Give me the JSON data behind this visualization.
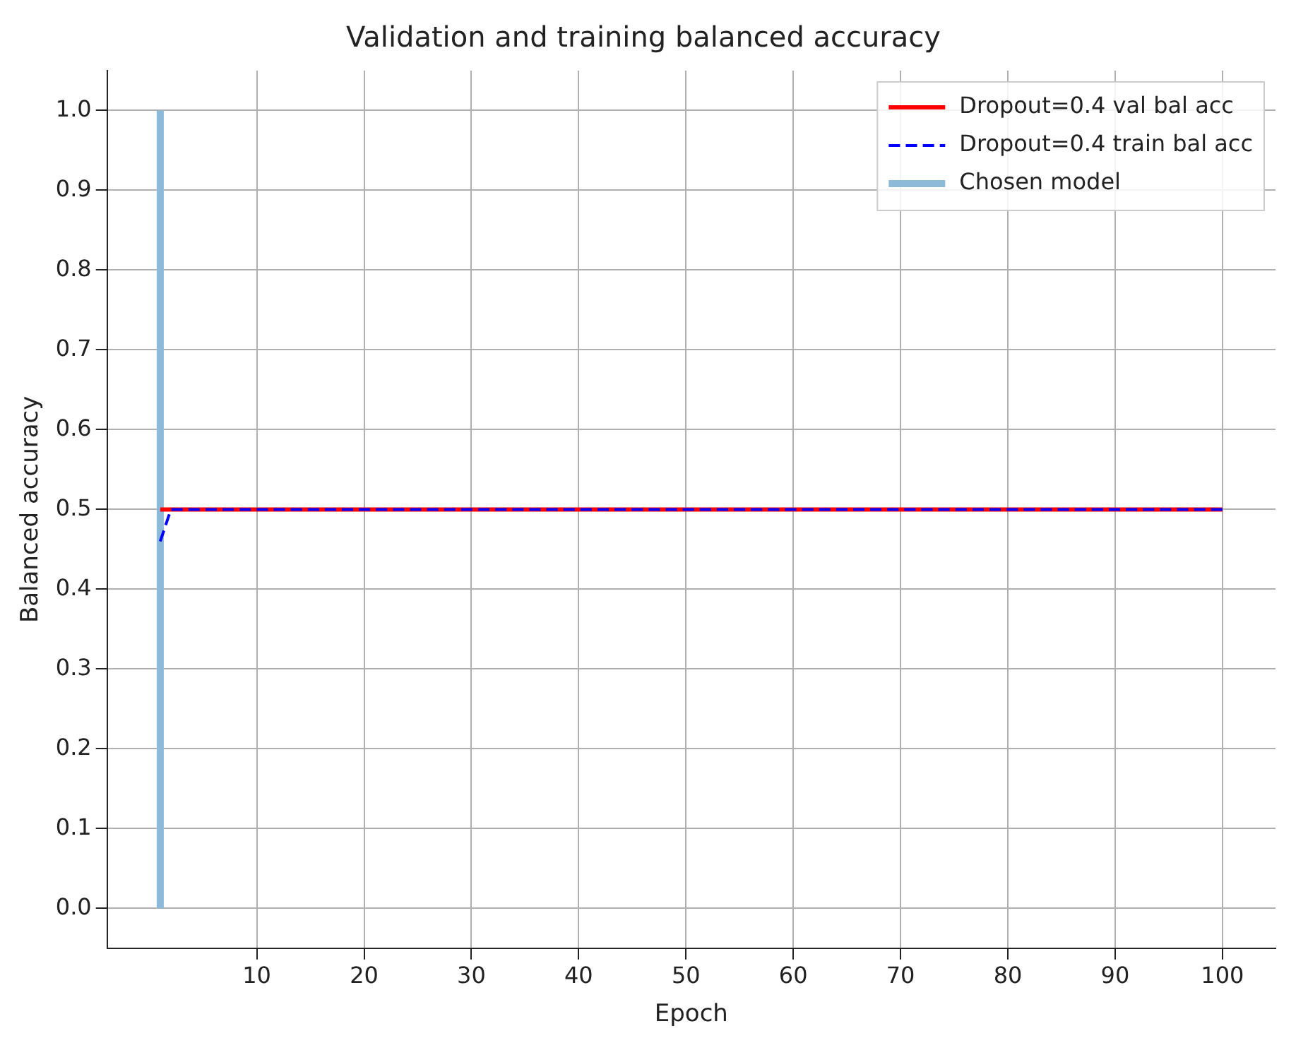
{
  "chart_data": {
    "type": "line",
    "title": "Validation and training balanced accuracy",
    "xlabel": "Epoch",
    "ylabel": "Balanced accuracy",
    "series": [
      {
        "name": "Dropout=0.4 val bal acc",
        "color": "#ff0000",
        "x": [
          1,
          100
        ],
        "values": [
          0.5,
          0.5
        ],
        "line_style": "solid"
      },
      {
        "name": "Dropout=0.4 train bal acc",
        "color": "#0000ff",
        "x": [
          1,
          2,
          100
        ],
        "values": [
          0.46,
          0.5,
          0.5
        ],
        "line_style": "dashed"
      },
      {
        "name": "Chosen model",
        "color": "#8ebad9",
        "x": [
          1,
          1
        ],
        "values": [
          0,
          1
        ],
        "line_style": "solid"
      }
    ],
    "xlim": [
      -3.95,
      104.95
    ],
    "xticks": [
      10,
      20,
      30,
      40,
      50,
      60,
      70,
      80,
      90,
      100
    ],
    "ylim": [
      -0.05,
      1.05
    ],
    "yticks": [
      {
        "value": 0,
        "label": "0.0"
      },
      {
        "value": 0.1,
        "label": "0.1"
      },
      {
        "value": 0.2,
        "label": "0.2"
      },
      {
        "value": 0.3,
        "label": "0.3"
      },
      {
        "value": 0.4,
        "label": "0.4"
      },
      {
        "value": 0.5,
        "label": "0.5"
      },
      {
        "value": 0.6,
        "label": "0.6"
      },
      {
        "value": 0.7,
        "label": "0.7"
      },
      {
        "value": 0.8,
        "label": "0.8"
      },
      {
        "value": 0.9,
        "label": "0.9"
      },
      {
        "value": 1,
        "label": "1.0"
      }
    ],
    "grid": true,
    "legend": "top right"
  }
}
